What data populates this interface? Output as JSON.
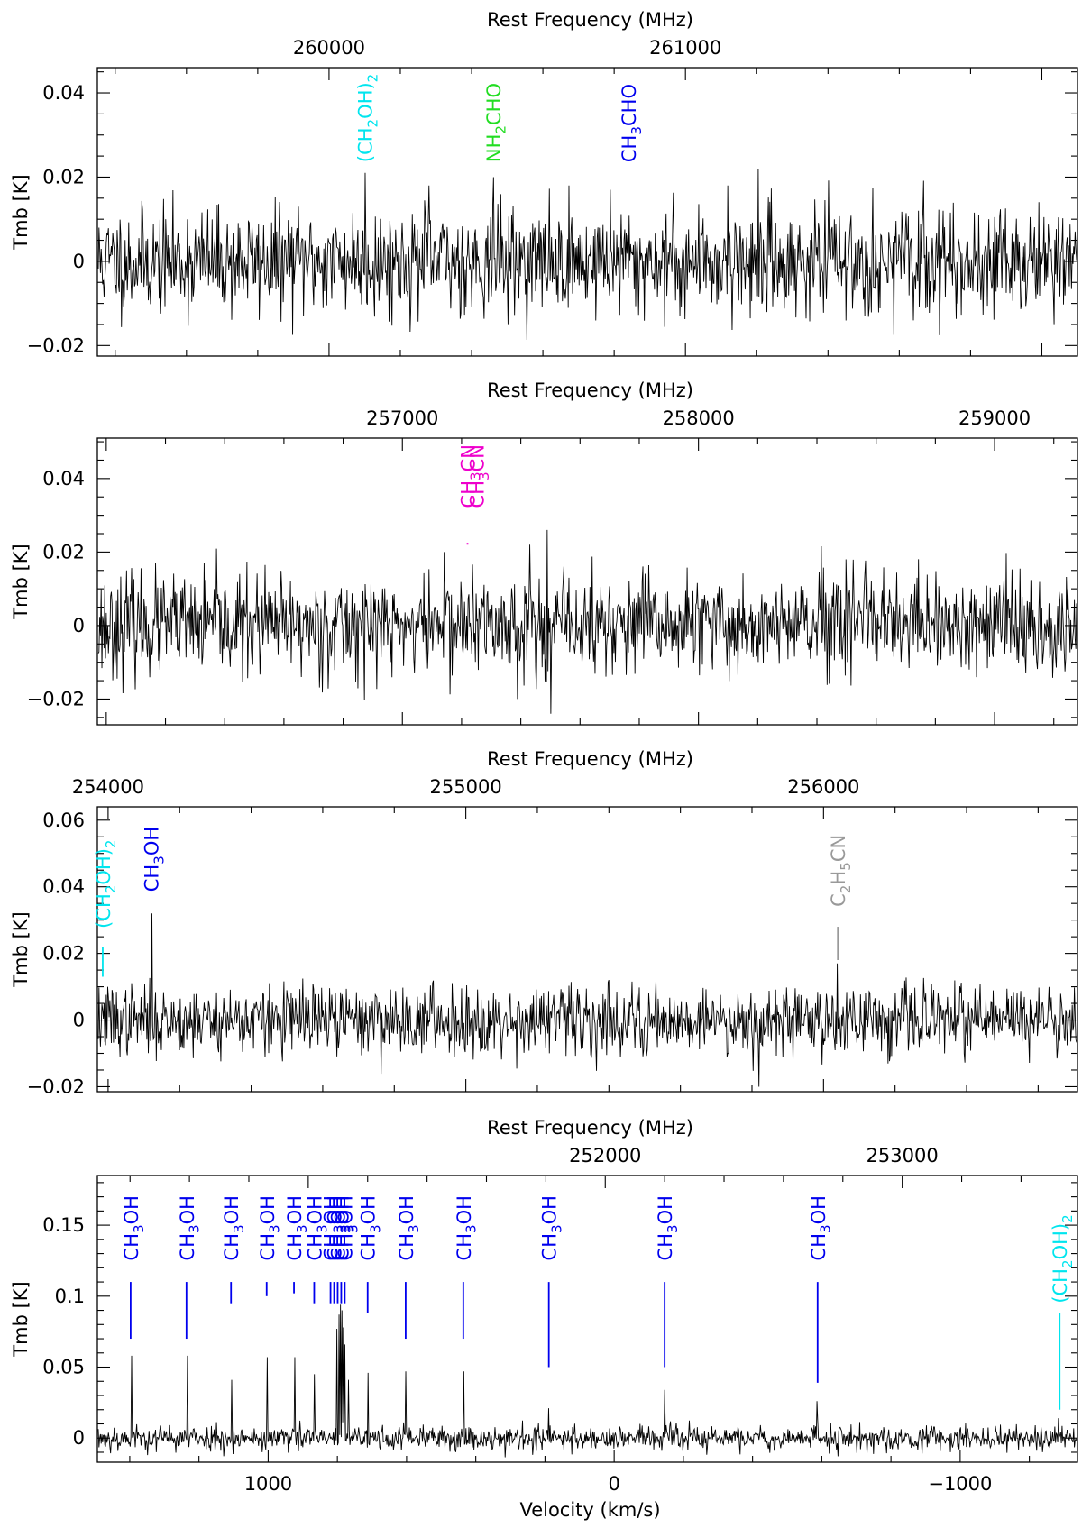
{
  "chart_data": [
    {
      "type": "line",
      "top_axis_label": "Rest Frequency (MHz)",
      "ylabel": "Tmb [K]",
      "xlim_freq": [
        259350,
        262100
      ],
      "ylim": [
        -0.0225,
        0.046
      ],
      "freq_ticks": [
        260000,
        261000
      ],
      "y_ticks": [
        -0.02,
        0,
        0.02,
        0.04
      ],
      "y_tick_labels": [
        "−0.02",
        "0",
        "0.02",
        "0.04"
      ],
      "noise_rms": 0.0062,
      "seed": 11,
      "spikes": [
        {
          "freq": 260100,
          "height": 0.021
        },
        {
          "freq": 260460,
          "height": 0.02
        },
        {
          "freq": 260280,
          "height": 0.018
        },
        {
          "freq": 260790,
          "height": 0.017
        },
        {
          "freq": 261205,
          "height": 0.022
        },
        {
          "freq": 261120,
          "height": 0.018
        }
      ],
      "lines": [
        {
          "freq": 260100,
          "label": "(CH2OH)2",
          "label_parts": [
            [
              "(CH",
              ""
            ],
            [
              "2",
              "sub"
            ],
            [
              "OH)",
              ""
            ],
            [
              "2",
              "sub"
            ]
          ],
          "color": "#00e5ee",
          "bar": [
            0.0,
            0.0
          ]
        },
        {
          "freq": 260460,
          "label": "NH2CHO",
          "label_parts": [
            [
              "NH",
              ""
            ],
            [
              "2",
              "sub"
            ],
            [
              "CHO",
              ""
            ]
          ],
          "color": "#22dd22",
          "bar": [
            0.0,
            0.0
          ]
        },
        {
          "freq": 260840,
          "label": "CH3CHO",
          "label_parts": [
            [
              "CH",
              ""
            ],
            [
              "3",
              "sub"
            ],
            [
              "CHO",
              ""
            ]
          ],
          "color": "#0000ee",
          "bar": [
            0.0,
            0.0
          ]
        }
      ]
    },
    {
      "type": "line",
      "top_axis_label": "Rest Frequency (MHz)",
      "ylabel": "Tmb [K]",
      "xlim_freq": [
        255970,
        259280
      ],
      "ylim": [
        -0.027,
        0.051
      ],
      "freq_ticks": [
        257000,
        258000,
        259000
      ],
      "y_ticks": [
        -0.02,
        0,
        0.02,
        0.04
      ],
      "y_tick_labels": [
        "−0.02",
        "0",
        "0.02",
        "0.04"
      ],
      "noise_rms": 0.0068,
      "seed": 23,
      "spikes": [
        {
          "freq": 257490,
          "height": 0.026
        },
        {
          "freq": 257430,
          "height": 0.022
        },
        {
          "freq": 257500,
          "height": -0.024
        },
        {
          "freq": 257140,
          "height": 0.02
        },
        {
          "freq": 258500,
          "height": 0.018
        }
      ],
      "lines": [
        {
          "freq": 257220,
          "label": "CH3CN",
          "label_parts": [
            [
              "CH",
              ""
            ],
            [
              "3",
              "sub"
            ],
            [
              "CN",
              ""
            ]
          ],
          "color": "#ee00cc",
          "bar": [
            0.022,
            0.0225
          ]
        },
        {
          "freq": 257250,
          "label": "CH3CN",
          "label_parts": [
            [
              "CH",
              ""
            ],
            [
              "3",
              "sub"
            ],
            [
              "CN",
              ""
            ]
          ],
          "color": "#ee00cc",
          "bar": [
            0.0,
            0.0
          ]
        }
      ]
    },
    {
      "type": "line",
      "top_axis_label": "Rest Frequency (MHz)",
      "ylabel": "Tmb [K]",
      "xlim_freq": [
        253970,
        256710
      ],
      "ylim": [
        -0.0215,
        0.064
      ],
      "freq_ticks": [
        254000,
        255000,
        256000
      ],
      "y_ticks": [
        -0.02,
        0,
        0.02,
        0.04,
        0.06
      ],
      "y_tick_labels": [
        "−0.02",
        "0",
        "0.02",
        "0.04",
        "0.06"
      ],
      "noise_rms": 0.0052,
      "seed": 37,
      "spikes": [
        {
          "freq": 254120,
          "height": 0.032
        },
        {
          "freq": 256040,
          "height": 0.017
        },
        {
          "freq": 255820,
          "height": -0.02
        }
      ],
      "lines": [
        {
          "freq": 253985,
          "label": "(CH2OH)2",
          "label_parts": [
            [
              "(CH",
              ""
            ],
            [
              "2",
              "sub"
            ],
            [
              "OH)",
              ""
            ],
            [
              "2",
              "sub"
            ]
          ],
          "color": "#00e5ee",
          "bar": [
            0.013,
            0.022
          ]
        },
        {
          "freq": 254120,
          "label": "CH3OH",
          "label_parts": [
            [
              "CH",
              ""
            ],
            [
              "3",
              "sub"
            ],
            [
              "OH",
              ""
            ]
          ],
          "color": "#0000ee",
          "bar": [
            0.0,
            0.0
          ]
        },
        {
          "freq": 256040,
          "label": "C2H5CN",
          "label_parts": [
            [
              "C",
              ""
            ],
            [
              "2",
              "sub"
            ],
            [
              "H",
              ""
            ],
            [
              "5",
              "sub"
            ],
            [
              "CN",
              ""
            ]
          ],
          "color": "#999999",
          "bar": [
            0.018,
            0.028
          ]
        }
      ]
    },
    {
      "type": "line",
      "top_axis_label": "Rest Frequency (MHz)",
      "ylabel": "Tmb [K]",
      "xlabel": "Velocity (km/s)",
      "xlim_freq": [
        250290,
        253590
      ],
      "ylim": [
        -0.017,
        0.185
      ],
      "vel_at_freq": {
        "freq0": 252030,
        "v0": 0,
        "km_s_per_MHz": 0.8584
      },
      "freq_ticks": [
        252000,
        253000
      ],
      "vel_ticks": [
        1000,
        0,
        -1000
      ],
      "vel_tick_labels": [
        "1000",
        "0",
        "−1000"
      ],
      "y_ticks": [
        0,
        0.05,
        0.1,
        0.15
      ],
      "y_tick_labels": [
        "0",
        "0.05",
        "0.1",
        "0.15"
      ],
      "noise_rms": 0.0045,
      "seed": 53,
      "spikes": [
        {
          "freq": 250402,
          "height": 0.058
        },
        {
          "freq": 250590,
          "height": 0.058
        },
        {
          "freq": 250740,
          "height": 0.041
        },
        {
          "freq": 250860,
          "height": 0.057
        },
        {
          "freq": 250952,
          "height": 0.057
        },
        {
          "freq": 251020,
          "height": 0.045
        },
        {
          "freq": 251095,
          "height": 0.077
        },
        {
          "freq": 251102,
          "height": 0.087
        },
        {
          "freq": 251108,
          "height": 0.094
        },
        {
          "freq": 251112,
          "height": 0.09
        },
        {
          "freq": 251117,
          "height": 0.078
        },
        {
          "freq": 251122,
          "height": 0.066
        },
        {
          "freq": 251135,
          "height": 0.041
        },
        {
          "freq": 251200,
          "height": 0.046
        },
        {
          "freq": 251328,
          "height": 0.047
        },
        {
          "freq": 251522,
          "height": 0.047
        },
        {
          "freq": 251810,
          "height": 0.021
        },
        {
          "freq": 252200,
          "height": 0.034
        },
        {
          "freq": 252715,
          "height": 0.026
        },
        {
          "freq": 253530,
          "height": 0.014
        }
      ],
      "lines": [
        {
          "freq": 250402,
          "label": "CH3OH",
          "label_parts": [
            [
              "CH",
              ""
            ],
            [
              "3",
              "sub"
            ],
            [
              "OH",
              ""
            ]
          ],
          "color": "#0000ee",
          "bar": [
            0.07,
            0.11
          ]
        },
        {
          "freq": 250590,
          "label": "CH3OH",
          "label_parts": [
            [
              "CH",
              ""
            ],
            [
              "3",
              "sub"
            ],
            [
              "OH",
              ""
            ]
          ],
          "color": "#0000ee",
          "bar": [
            0.07,
            0.11
          ]
        },
        {
          "freq": 250740,
          "label": "CH3OH",
          "label_parts": [
            [
              "CH",
              ""
            ],
            [
              "3",
              "sub"
            ],
            [
              "OH",
              ""
            ]
          ],
          "color": "#0000ee",
          "bar": [
            0.095,
            0.11
          ]
        },
        {
          "freq": 250860,
          "label": "CH3OH",
          "label_parts": [
            [
              "CH",
              ""
            ],
            [
              "3",
              "sub"
            ],
            [
              "OH",
              ""
            ]
          ],
          "color": "#0000ee",
          "bar": [
            0.1,
            0.11
          ]
        },
        {
          "freq": 250952,
          "label": "CH3OH",
          "label_parts": [
            [
              "CH",
              ""
            ],
            [
              "3",
              "sub"
            ],
            [
              "OH",
              ""
            ]
          ],
          "color": "#0000ee",
          "bar": [
            0.102,
            0.11
          ]
        },
        {
          "freq": 251020,
          "label": "CH3OH",
          "label_parts": [
            [
              "CH",
              ""
            ],
            [
              "3",
              "sub"
            ],
            [
              "OH",
              ""
            ]
          ],
          "color": "#0000ee",
          "bar": [
            0.095,
            0.11
          ]
        },
        {
          "freq": 251075,
          "label": "CH3OH",
          "label_parts": [
            [
              "CH",
              ""
            ],
            [
              "3",
              "sub"
            ],
            [
              "OH",
              ""
            ]
          ],
          "color": "#0000ee",
          "bar": [
            0.095,
            0.11
          ]
        },
        {
          "freq": 251087,
          "label": "CH3OH",
          "label_parts": [
            [
              "CH",
              ""
            ],
            [
              "3",
              "sub"
            ],
            [
              "OH",
              ""
            ]
          ],
          "color": "#0000ee",
          "bar": [
            0.095,
            0.11
          ]
        },
        {
          "freq": 251099,
          "label": "CH3OH",
          "label_parts": [
            [
              "CH",
              ""
            ],
            [
              "3",
              "sub"
            ],
            [
              "OH",
              ""
            ]
          ],
          "color": "#0000ee",
          "bar": [
            0.095,
            0.11
          ]
        },
        {
          "freq": 251111,
          "label": "CH3OH",
          "label_parts": [
            [
              "CH",
              ""
            ],
            [
              "3",
              "sub"
            ],
            [
              "OH",
              ""
            ]
          ],
          "color": "#0000ee",
          "bar": [
            0.095,
            0.11
          ]
        },
        {
          "freq": 251123,
          "label": "CH3OH",
          "label_parts": [
            [
              "CH",
              ""
            ],
            [
              "3",
              "sub"
            ],
            [
              "OH",
              ""
            ]
          ],
          "color": "#0000ee",
          "bar": [
            0.095,
            0.11
          ]
        },
        {
          "freq": 251200,
          "label": "CH3OH",
          "label_parts": [
            [
              "CH",
              ""
            ],
            [
              "3",
              "sub"
            ],
            [
              "OH",
              ""
            ]
          ],
          "color": "#0000ee",
          "bar": [
            0.088,
            0.11
          ]
        },
        {
          "freq": 251328,
          "label": "CH3OH",
          "label_parts": [
            [
              "CH",
              ""
            ],
            [
              "3",
              "sub"
            ],
            [
              "OH",
              ""
            ]
          ],
          "color": "#0000ee",
          "bar": [
            0.07,
            0.11
          ]
        },
        {
          "freq": 251522,
          "label": "CH3OH",
          "label_parts": [
            [
              "CH",
              ""
            ],
            [
              "3",
              "sub"
            ],
            [
              "OH",
              ""
            ]
          ],
          "color": "#0000ee",
          "bar": [
            0.07,
            0.11
          ]
        },
        {
          "freq": 251810,
          "label": "CH3OH",
          "label_parts": [
            [
              "CH",
              ""
            ],
            [
              "3",
              "sub"
            ],
            [
              "OH",
              ""
            ]
          ],
          "color": "#0000ee",
          "bar": [
            0.05,
            0.11
          ]
        },
        {
          "freq": 252200,
          "label": "CH3OH",
          "label_parts": [
            [
              "CH",
              ""
            ],
            [
              "3",
              "sub"
            ],
            [
              "OH",
              ""
            ]
          ],
          "color": "#0000ee",
          "bar": [
            0.05,
            0.11
          ]
        },
        {
          "freq": 252715,
          "label": "CH3OH",
          "label_parts": [
            [
              "CH",
              ""
            ],
            [
              "3",
              "sub"
            ],
            [
              "OH",
              ""
            ]
          ],
          "color": "#0000ee",
          "bar": [
            0.039,
            0.11
          ]
        },
        {
          "freq": 253530,
          "label": "(CH2OH)2",
          "label_parts": [
            [
              "(CH",
              ""
            ],
            [
              "2",
              "sub"
            ],
            [
              "OH)",
              ""
            ],
            [
              "2",
              "sub"
            ]
          ],
          "color": "#00e5ee",
          "bar": [
            0.02,
            0.088
          ]
        }
      ]
    }
  ]
}
